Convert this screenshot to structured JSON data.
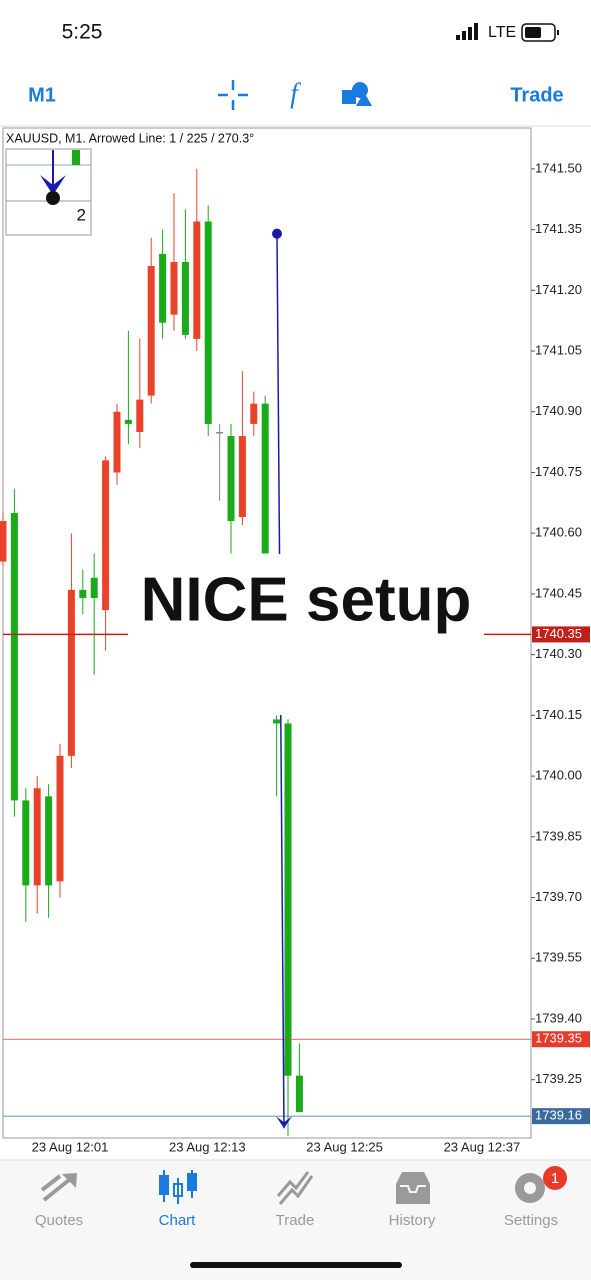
{
  "status_bar": {
    "time": "5:25",
    "network": "LTE"
  },
  "toolbar": {
    "timeframe": "M1",
    "trade": "Trade"
  },
  "chart_data": {
    "type": "candlestick",
    "title": "XAUUSD, M1. Arrowed Line: 1 / 225 / 270.3°",
    "annotation": "NICE setup",
    "mini_window_label": "2",
    "open": [
      1740.63,
      1739.94,
      1739.73,
      1739.97,
      1739.73,
      1740.05,
      1740.46,
      1740.44,
      1740.44,
      1740.78,
      1740.9,
      1740.87,
      1740.93,
      1741.26,
      1741.12,
      1741.27,
      1741.09,
      1741.37,
      1740.87,
      1740.85,
      1740.63,
      1740.84,
      1740.92,
      1740.55,
      1740.13,
      1739.26,
      1739.17
    ],
    "high": [
      1740.65,
      1740.71,
      1739.97,
      1740.0,
      1739.98,
      1740.08,
      1740.6,
      1740.51,
      1740.55,
      1740.79,
      1740.92,
      1741.1,
      1741.08,
      1741.33,
      1741.35,
      1741.44,
      1741.4,
      1741.5,
      1741.41,
      1740.87,
      1740.87,
      1741.0,
      1740.95,
      1740.94,
      1740.15,
      1740.14,
      1739.34
    ],
    "low": [
      1740.52,
      1739.9,
      1739.64,
      1739.66,
      1739.65,
      1739.7,
      1740.02,
      1740.4,
      1740.25,
      1740.31,
      1740.72,
      1740.82,
      1740.81,
      1740.92,
      1741.08,
      1741.1,
      1741.08,
      1741.05,
      1740.84,
      1740.68,
      1740.55,
      1740.62,
      1740.84,
      1740.55,
      1739.95,
      1739.11,
      1739.17
    ],
    "close": [
      1740.53,
      1740.65,
      1739.94,
      1739.73,
      1739.95,
      1739.74,
      1740.05,
      1740.46,
      1740.49,
      1740.41,
      1740.75,
      1740.88,
      1740.85,
      1740.94,
      1741.29,
      1741.14,
      1741.27,
      1741.08,
      1741.37,
      1740.85,
      1740.84,
      1740.64,
      1740.87,
      1740.92,
      1740.14,
      1740.13,
      1739.26
    ],
    "up_color": "#1aaa1a",
    "down_color": "#e8432a",
    "flat_color": "#888888",
    "ylim": [
      1739.106,
      1741.601
    ],
    "yticks": [
      {
        "value": 1741.5,
        "label": "1741.50"
      },
      1741.35,
      {
        "value": 1741.2,
        "label": "1741.20"
      },
      1741.05,
      {
        "value": 1740.9,
        "label": "1740.90"
      },
      1740.75,
      {
        "value": 1740.6,
        "label": "1740.60"
      },
      1740.45,
      {
        "value": 1740.3,
        "label": "1740.30"
      },
      1740.15,
      {
        "value": 1740,
        "label": "1740.00"
      },
      1739.85,
      {
        "value": 1739.7,
        "label": "1739.70"
      },
      1739.55,
      {
        "value": 1739.4,
        "label": "1739.40"
      },
      1739.25
    ],
    "x_axis_labels": [
      "23 Aug 12:01",
      "23 Aug 12:13",
      "23 Aug 12:25",
      "23 Aug 12:37"
    ],
    "price_lines": [
      {
        "value": 1740.35,
        "color": "#c0201a"
      },
      {
        "value": 1739.35,
        "color": "#e83a2a"
      },
      {
        "value": 1739.16,
        "color": "#3a6aa0"
      }
    ],
    "arrowed_line": {
      "start": 1741.34,
      "end": 1739.13,
      "color": "#1a1ab0"
    }
  },
  "tab_bar": {
    "tabs": [
      "Quotes",
      "Chart",
      "Trade",
      "History",
      "Settings"
    ],
    "active": "Chart",
    "settings_badge": "1"
  }
}
